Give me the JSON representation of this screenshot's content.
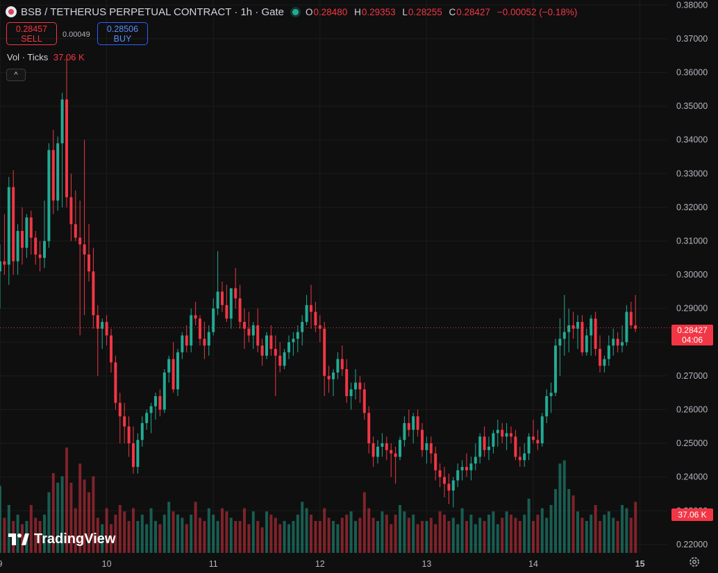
{
  "header": {
    "symbol": "BSB / TETHERUS PERPETUAL CONTRACT · 1h · Gate",
    "ohlc": [
      {
        "k": "O",
        "v": "0.28480"
      },
      {
        "k": "H",
        "v": "0.29353"
      },
      {
        "k": "L",
        "v": "0.28255"
      },
      {
        "k": "C",
        "v": "0.28427"
      }
    ],
    "change": "−0.00052 (−0.18%)"
  },
  "trade": {
    "sell_price": "0.28457",
    "sell_label": "SELL",
    "spread": "0.00049",
    "buy_price": "0.28506",
    "buy_label": "BUY"
  },
  "volume_legend": {
    "label": "Vol · Ticks",
    "value": "37.06 K"
  },
  "collapse_icon": "^",
  "price_tag": {
    "price": "0.28427",
    "countdown": "04:06"
  },
  "volume_tag": "37.06 K",
  "logo_text": "TradingView",
  "colors": {
    "up": "#22ab94",
    "down": "#f23645",
    "background": "#0f0f0f",
    "grid": "#1c1c1c"
  },
  "chart_data": {
    "type": "candlestick",
    "timeframe": "1h",
    "x_ticks": [
      "9",
      "10",
      "11",
      "12",
      "13",
      "14",
      "15"
    ],
    "y_ticks": [
      "0.38000",
      "0.37000",
      "0.36000",
      "0.35000",
      "0.34000",
      "0.33000",
      "0.32000",
      "0.31000",
      "0.30000",
      "0.29000",
      "0.28000",
      "0.27000",
      "0.26000",
      "0.25000",
      "0.24000",
      "0.23000",
      "0.22000"
    ],
    "ylim": [
      0.2175,
      0.3815
    ],
    "x_range_days": [
      9,
      15.25
    ],
    "last_price": 0.28427,
    "grid": true,
    "candles_per_day": 24,
    "start_day": 9,
    "ohlc": [
      [
        0.301,
        0.309,
        0.29,
        0.304
      ],
      [
        0.304,
        0.318,
        0.3,
        0.303
      ],
      [
        0.303,
        0.329,
        0.297,
        0.326
      ],
      [
        0.326,
        0.331,
        0.3,
        0.304
      ],
      [
        0.304,
        0.315,
        0.3,
        0.313
      ],
      [
        0.313,
        0.32,
        0.303,
        0.308
      ],
      [
        0.308,
        0.318,
        0.305,
        0.317
      ],
      [
        0.317,
        0.319,
        0.306,
        0.311
      ],
      [
        0.311,
        0.313,
        0.303,
        0.306
      ],
      [
        0.306,
        0.31,
        0.301,
        0.305
      ],
      [
        0.305,
        0.322,
        0.302,
        0.31
      ],
      [
        0.31,
        0.339,
        0.308,
        0.337
      ],
      [
        0.337,
        0.343,
        0.318,
        0.322
      ],
      [
        0.322,
        0.341,
        0.319,
        0.339
      ],
      [
        0.339,
        0.354,
        0.32,
        0.352
      ],
      [
        0.352,
        0.365,
        0.32,
        0.323
      ],
      [
        0.323,
        0.33,
        0.31,
        0.315
      ],
      [
        0.315,
        0.325,
        0.31,
        0.311
      ],
      [
        0.311,
        0.322,
        0.282,
        0.309
      ],
      [
        0.309,
        0.34,
        0.288,
        0.306
      ],
      [
        0.306,
        0.315,
        0.298,
        0.301
      ],
      [
        0.301,
        0.308,
        0.284,
        0.288
      ],
      [
        0.288,
        0.291,
        0.27,
        0.284
      ],
      [
        0.284,
        0.287,
        0.278,
        0.286
      ],
      [
        0.286,
        0.288,
        0.279,
        0.282
      ],
      [
        0.282,
        0.284,
        0.271,
        0.274
      ],
      [
        0.274,
        0.276,
        0.26,
        0.262
      ],
      [
        0.262,
        0.265,
        0.25,
        0.258
      ],
      [
        0.258,
        0.262,
        0.25,
        0.255
      ],
      [
        0.255,
        0.258,
        0.246,
        0.25
      ],
      [
        0.25,
        0.255,
        0.241,
        0.243
      ],
      [
        0.243,
        0.253,
        0.241,
        0.251
      ],
      [
        0.251,
        0.258,
        0.249,
        0.256
      ],
      [
        0.256,
        0.26,
        0.254,
        0.259
      ],
      [
        0.259,
        0.262,
        0.253,
        0.261
      ],
      [
        0.261,
        0.265,
        0.257,
        0.264
      ],
      [
        0.264,
        0.266,
        0.258,
        0.26
      ],
      [
        0.26,
        0.272,
        0.259,
        0.271
      ],
      [
        0.271,
        0.276,
        0.268,
        0.275
      ],
      [
        0.275,
        0.28,
        0.265,
        0.266
      ],
      [
        0.266,
        0.278,
        0.264,
        0.277
      ],
      [
        0.277,
        0.283,
        0.275,
        0.282
      ],
      [
        0.282,
        0.285,
        0.277,
        0.279
      ],
      [
        0.279,
        0.29,
        0.277,
        0.288
      ],
      [
        0.288,
        0.292,
        0.285,
        0.287
      ],
      [
        0.287,
        0.288,
        0.279,
        0.281
      ],
      [
        0.281,
        0.286,
        0.275,
        0.279
      ],
      [
        0.279,
        0.285,
        0.276,
        0.283
      ],
      [
        0.283,
        0.293,
        0.282,
        0.29
      ],
      [
        0.29,
        0.307,
        0.288,
        0.295
      ],
      [
        0.295,
        0.298,
        0.289,
        0.291
      ],
      [
        0.291,
        0.297,
        0.286,
        0.287
      ],
      [
        0.287,
        0.296,
        0.284,
        0.296
      ],
      [
        0.296,
        0.302,
        0.29,
        0.293
      ],
      [
        0.293,
        0.297,
        0.284,
        0.286
      ],
      [
        0.286,
        0.29,
        0.278,
        0.284
      ],
      [
        0.284,
        0.289,
        0.28,
        0.282
      ],
      [
        0.282,
        0.286,
        0.278,
        0.285
      ],
      [
        0.285,
        0.29,
        0.277,
        0.279
      ],
      [
        0.279,
        0.281,
        0.273,
        0.276
      ],
      [
        0.276,
        0.283,
        0.275,
        0.282
      ],
      [
        0.282,
        0.285,
        0.276,
        0.278
      ],
      [
        0.278,
        0.282,
        0.264,
        0.276
      ],
      [
        0.276,
        0.28,
        0.271,
        0.273
      ],
      [
        0.273,
        0.278,
        0.272,
        0.277
      ],
      [
        0.277,
        0.282,
        0.275,
        0.28
      ],
      [
        0.28,
        0.283,
        0.276,
        0.281
      ],
      [
        0.281,
        0.285,
        0.277,
        0.283
      ],
      [
        0.283,
        0.288,
        0.279,
        0.286
      ],
      [
        0.286,
        0.294,
        0.285,
        0.291
      ],
      [
        0.291,
        0.297,
        0.284,
        0.289
      ],
      [
        0.289,
        0.292,
        0.283,
        0.285
      ],
      [
        0.285,
        0.288,
        0.28,
        0.284
      ],
      [
        0.284,
        0.286,
        0.264,
        0.27
      ],
      [
        0.27,
        0.273,
        0.265,
        0.269
      ],
      [
        0.269,
        0.272,
        0.264,
        0.271
      ],
      [
        0.271,
        0.277,
        0.269,
        0.275
      ],
      [
        0.275,
        0.279,
        0.27,
        0.272
      ],
      [
        0.272,
        0.275,
        0.262,
        0.264
      ],
      [
        0.264,
        0.268,
        0.26,
        0.266
      ],
      [
        0.266,
        0.272,
        0.263,
        0.268
      ],
      [
        0.268,
        0.27,
        0.262,
        0.266
      ],
      [
        0.266,
        0.268,
        0.257,
        0.259
      ],
      [
        0.259,
        0.261,
        0.247,
        0.25
      ],
      [
        0.25,
        0.252,
        0.243,
        0.246
      ],
      [
        0.246,
        0.251,
        0.244,
        0.249
      ],
      [
        0.249,
        0.253,
        0.246,
        0.25
      ],
      [
        0.25,
        0.252,
        0.245,
        0.248
      ],
      [
        0.248,
        0.25,
        0.24,
        0.247
      ],
      [
        0.247,
        0.249,
        0.238,
        0.246
      ],
      [
        0.246,
        0.252,
        0.245,
        0.251
      ],
      [
        0.251,
        0.258,
        0.249,
        0.256
      ],
      [
        0.256,
        0.26,
        0.252,
        0.254
      ],
      [
        0.254,
        0.259,
        0.25,
        0.258
      ],
      [
        0.258,
        0.26,
        0.252,
        0.254
      ],
      [
        0.254,
        0.256,
        0.246,
        0.248
      ],
      [
        0.248,
        0.252,
        0.244,
        0.25
      ],
      [
        0.25,
        0.252,
        0.244,
        0.247
      ],
      [
        0.247,
        0.249,
        0.239,
        0.242
      ],
      [
        0.242,
        0.244,
        0.237,
        0.24
      ],
      [
        0.24,
        0.243,
        0.234,
        0.238
      ],
      [
        0.238,
        0.241,
        0.232,
        0.236
      ],
      [
        0.236,
        0.24,
        0.231,
        0.239
      ],
      [
        0.239,
        0.244,
        0.237,
        0.242
      ],
      [
        0.242,
        0.245,
        0.239,
        0.243
      ],
      [
        0.243,
        0.247,
        0.24,
        0.242
      ],
      [
        0.242,
        0.246,
        0.239,
        0.244
      ],
      [
        0.244,
        0.25,
        0.242,
        0.246
      ],
      [
        0.246,
        0.253,
        0.244,
        0.252
      ],
      [
        0.252,
        0.255,
        0.246,
        0.248
      ],
      [
        0.248,
        0.252,
        0.245,
        0.249
      ],
      [
        0.249,
        0.254,
        0.247,
        0.253
      ],
      [
        0.253,
        0.257,
        0.249,
        0.254
      ],
      [
        0.254,
        0.256,
        0.25,
        0.252
      ],
      [
        0.252,
        0.256,
        0.248,
        0.253
      ],
      [
        0.253,
        0.255,
        0.25,
        0.252
      ],
      [
        0.252,
        0.254,
        0.245,
        0.246
      ],
      [
        0.246,
        0.249,
        0.243,
        0.245
      ],
      [
        0.245,
        0.25,
        0.243,
        0.247
      ],
      [
        0.247,
        0.253,
        0.245,
        0.252
      ],
      [
        0.252,
        0.257,
        0.25,
        0.251
      ],
      [
        0.251,
        0.254,
        0.248,
        0.25
      ],
      [
        0.25,
        0.259,
        0.249,
        0.258
      ],
      [
        0.258,
        0.266,
        0.256,
        0.264
      ],
      [
        0.264,
        0.268,
        0.259,
        0.265
      ],
      [
        0.265,
        0.281,
        0.264,
        0.279
      ],
      [
        0.279,
        0.287,
        0.27,
        0.281
      ],
      [
        0.281,
        0.294,
        0.276,
        0.283
      ],
      [
        0.283,
        0.29,
        0.277,
        0.285
      ],
      [
        0.285,
        0.289,
        0.281,
        0.284
      ],
      [
        0.284,
        0.288,
        0.278,
        0.286
      ],
      [
        0.286,
        0.288,
        0.276,
        0.277
      ],
      [
        0.277,
        0.284,
        0.276,
        0.282
      ],
      [
        0.282,
        0.288,
        0.276,
        0.287
      ],
      [
        0.287,
        0.289,
        0.276,
        0.278
      ],
      [
        0.278,
        0.282,
        0.271,
        0.273
      ],
      [
        0.273,
        0.276,
        0.271,
        0.275
      ],
      [
        0.275,
        0.282,
        0.273,
        0.279
      ],
      [
        0.279,
        0.284,
        0.276,
        0.281
      ],
      [
        0.281,
        0.283,
        0.277,
        0.279
      ],
      [
        0.279,
        0.285,
        0.277,
        0.28
      ],
      [
        0.28,
        0.291,
        0.279,
        0.289
      ],
      [
        0.289,
        0.292,
        0.284,
        0.285
      ],
      [
        0.285,
        0.294,
        0.283,
        0.284
      ]
    ],
    "volume": [
      21,
      11,
      15,
      10,
      12,
      9,
      10,
      15,
      11,
      10,
      12,
      19,
      25,
      22,
      24,
      33,
      22,
      14,
      28,
      23,
      19,
      24,
      11,
      9,
      14,
      9,
      12,
      15,
      13,
      10,
      14,
      10,
      12,
      9,
      14,
      10,
      9,
      12,
      16,
      13,
      12,
      11,
      9,
      12,
      16,
      11,
      10,
      14,
      12,
      10,
      14,
      13,
      11,
      10,
      10,
      14,
      9,
      13,
      10,
      8,
      13,
      12,
      11,
      9,
      10,
      9,
      10,
      12,
      16,
      14,
      12,
      10,
      10,
      14,
      11,
      10,
      9,
      11,
      12,
      13,
      10,
      11,
      19,
      14,
      11,
      10,
      13,
      12,
      9,
      12,
      15,
      13,
      11,
      12,
      9,
      10,
      10,
      11,
      9,
      13,
      12,
      10,
      11,
      9,
      14,
      10,
      12,
      9,
      11,
      10,
      12,
      13,
      9,
      11,
      13,
      12,
      11,
      10,
      12,
      17,
      10,
      12,
      14,
      11,
      15,
      20,
      28,
      29,
      20,
      18,
      13,
      11,
      10,
      12,
      15,
      10,
      12,
      13,
      11,
      10,
      15,
      14,
      11,
      16
    ],
    "volume_up_flags": [
      1,
      0,
      1,
      0,
      1,
      0,
      1,
      0,
      0,
      0,
      1,
      1,
      0,
      1,
      1,
      0,
      0,
      0,
      0,
      0,
      0,
      0,
      0,
      1,
      0,
      0,
      0,
      0,
      0,
      0,
      0,
      1,
      1,
      1,
      1,
      1,
      0,
      1,
      1,
      0,
      1,
      1,
      0,
      1,
      0,
      0,
      0,
      1,
      1,
      1,
      0,
      0,
      1,
      0,
      0,
      0,
      0,
      1,
      0,
      0,
      1,
      0,
      0,
      0,
      1,
      1,
      1,
      1,
      1,
      1,
      0,
      0,
      0,
      0,
      0,
      1,
      1,
      0,
      0,
      1,
      1,
      0,
      0,
      0,
      0,
      1,
      1,
      0,
      0,
      0,
      1,
      1,
      0,
      1,
      0,
      0,
      1,
      0,
      0,
      0,
      0,
      0,
      1,
      1,
      1,
      0,
      1,
      1,
      1,
      0,
      1,
      1,
      1,
      0,
      1,
      0,
      0,
      0,
      1,
      1,
      0,
      0,
      1,
      1,
      1,
      1,
      1,
      1,
      1,
      0,
      1,
      0,
      1,
      1,
      0,
      0,
      1,
      1,
      1,
      0,
      1,
      1,
      0,
      0
    ],
    "volume_range_max": 50
  }
}
